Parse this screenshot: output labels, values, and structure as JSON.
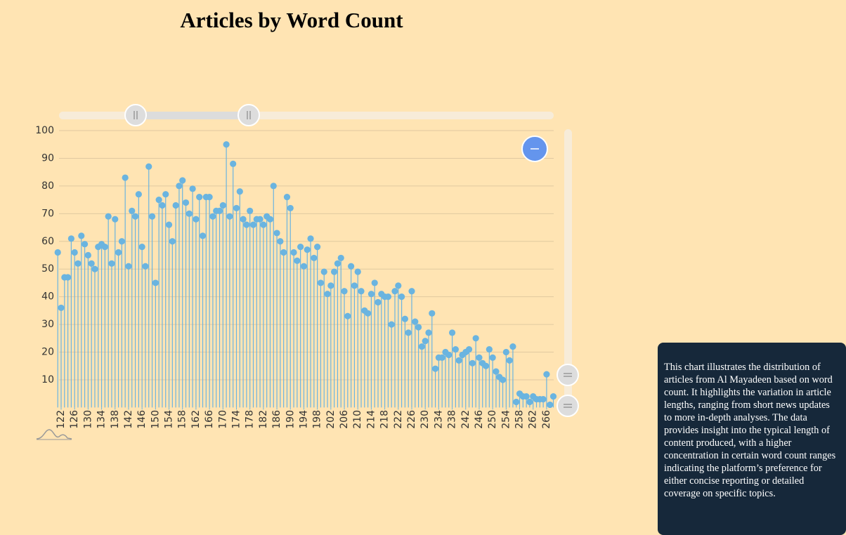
{
  "chart_data": {
    "type": "lollipop",
    "title": "Articles by Word Count",
    "x": [
      121,
      122,
      123,
      124,
      125,
      126,
      127,
      128,
      129,
      130,
      131,
      132,
      133,
      134,
      135,
      136,
      137,
      138,
      139,
      140,
      141,
      142,
      143,
      144,
      145,
      146,
      147,
      148,
      149,
      150,
      151,
      152,
      153,
      154,
      155,
      156,
      157,
      158,
      159,
      160,
      161,
      162,
      163,
      164,
      165,
      166,
      167,
      168,
      169,
      170,
      171,
      172,
      173,
      174,
      175,
      176,
      177,
      178,
      179,
      180,
      181,
      182,
      183,
      184,
      185,
      186,
      187,
      188,
      189,
      190,
      191,
      192,
      193,
      194,
      195,
      196,
      197,
      198,
      199,
      200,
      201,
      202,
      203,
      204,
      205,
      206,
      207,
      208,
      209,
      210,
      211,
      212,
      213,
      214,
      215,
      216,
      217,
      218,
      219,
      220,
      221,
      222,
      223,
      224,
      225,
      226,
      227,
      228,
      229,
      230,
      231,
      232,
      233,
      234,
      235,
      236,
      237,
      238,
      239,
      240,
      241,
      242,
      243,
      244,
      245,
      246,
      247,
      248,
      249,
      250,
      251,
      252,
      253,
      254,
      255,
      256,
      257,
      258,
      259,
      260,
      261,
      262,
      263,
      264,
      265,
      266,
      267,
      268
    ],
    "values": [
      56,
      36,
      47,
      47,
      61,
      56,
      52,
      62,
      59,
      55,
      52,
      50,
      58,
      59,
      58,
      69,
      52,
      68,
      56,
      60,
      83,
      51,
      71,
      69,
      77,
      58,
      51,
      87,
      69,
      45,
      75,
      73,
      77,
      66,
      60,
      73,
      80,
      82,
      74,
      70,
      79,
      68,
      76,
      62,
      76,
      76,
      69,
      71,
      71,
      73,
      95,
      69,
      88,
      72,
      78,
      68,
      66,
      71,
      66,
      68,
      68,
      66,
      69,
      68,
      80,
      63,
      60,
      56,
      76,
      72,
      56,
      53,
      58,
      51,
      57,
      61,
      54,
      58,
      45,
      49,
      41,
      44,
      49,
      52,
      54,
      42,
      33,
      51,
      44,
      49,
      42,
      35,
      34,
      41,
      45,
      38,
      41,
      40,
      40,
      30,
      42,
      44,
      40,
      32,
      27,
      42,
      31,
      29,
      22,
      24,
      27,
      34,
      14,
      18,
      18,
      20,
      19,
      27,
      21,
      17,
      19,
      20,
      21,
      16,
      25,
      18,
      16,
      15,
      21,
      18,
      13,
      11,
      10,
      20,
      17,
      22,
      2,
      5,
      4,
      4,
      2,
      4,
      3,
      3,
      3,
      12,
      1,
      4
    ],
    "color": "#6ab4e0",
    "xlim": [
      121,
      268
    ],
    "xticks": [
      122,
      126,
      130,
      134,
      138,
      142,
      146,
      150,
      154,
      158,
      162,
      166,
      170,
      174,
      178,
      182,
      186,
      190,
      194,
      198,
      202,
      206,
      210,
      214,
      218,
      222,
      226,
      230,
      234,
      238,
      242,
      246,
      250,
      254,
      258,
      262,
      266
    ],
    "ylim": [
      0,
      100
    ],
    "yticks": [
      10,
      20,
      30,
      40,
      50,
      60,
      70,
      80,
      90,
      100
    ],
    "grid": true,
    "description": "This chart illustrates the distribution of articles from Al Mayadeen based on word count. It highlights the variation in article lengths, ranging from short news updates to more in-depth analyses. The data provides insight into the typical length of content produced, with a higher concentration in certain word count ranges indicating the platform’s preference for either concise reporting or detailed coverage on specific topics."
  }
}
